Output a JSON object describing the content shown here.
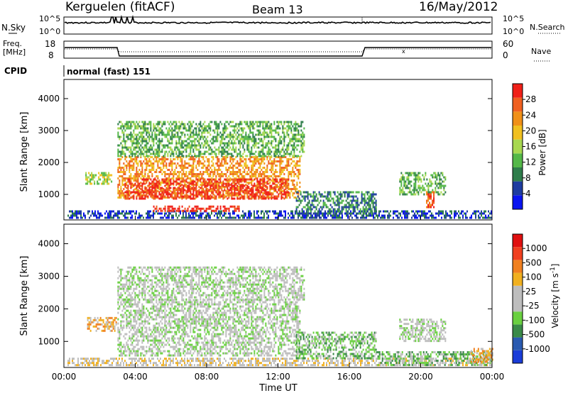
{
  "header": {
    "station": "Kerguelen (fitACF)",
    "beam": "Beam 13",
    "date": "16/May/2012"
  },
  "top_panels": {
    "nsky_label": "N.Sky",
    "nsky_ticks": [
      "10^5",
      "10^0"
    ],
    "nsearch_label": "N.Search",
    "nsearch_ticks": [
      "10^5",
      "10^0"
    ],
    "freq_label_1": "Freq.",
    "freq_label_2": "[MHz]",
    "freq_ticks": [
      "18",
      "8"
    ],
    "nave_label": "Nave",
    "nave_ticks": [
      "60",
      "0"
    ],
    "cpid_label": "CPID",
    "cpid_value": "normal (fast) 151"
  },
  "time_axis": {
    "ticks": [
      "00:00",
      "04:00",
      "08:00",
      "12:00",
      "16:00",
      "20:00",
      "00:00"
    ],
    "label": "Time UT"
  },
  "chart_data": [
    {
      "type": "heatmap",
      "quantity": "Power",
      "ylabel": "Slant Range [km]",
      "yticks": [
        1000,
        2000,
        3000,
        4000
      ],
      "ylim": [
        200,
        4600
      ],
      "xlim_hours": [
        0,
        24
      ],
      "colorbar_label": "Power [dB]",
      "colorbar_ticks": [
        "4",
        "8",
        "12",
        "16",
        "20",
        "24",
        "28"
      ],
      "colorbar_colors": [
        "#0a14f0",
        "#1e3ca0",
        "#2e7d4a",
        "#54b848",
        "#a8d850",
        "#f0c020",
        "#f09018",
        "#f06020",
        "#f02018"
      ],
      "regions": [
        {
          "t": [
            1.2,
            2.7
          ],
          "r": [
            1350,
            1700
          ],
          "level": 4
        },
        {
          "t": [
            0.2,
            24.0
          ],
          "r": [
            250,
            500
          ],
          "level": 1
        },
        {
          "t": [
            3.0,
            13.2
          ],
          "r": [
            900,
            2200
          ],
          "level": 6
        },
        {
          "t": [
            3.4,
            12.6
          ],
          "r": [
            850,
            1500
          ],
          "level": 8
        },
        {
          "t": [
            5.0,
            9.8
          ],
          "r": [
            450,
            650
          ],
          "level": 8
        },
        {
          "t": [
            3.0,
            13.5
          ],
          "r": [
            2200,
            3300
          ],
          "level": 3
        },
        {
          "t": [
            13.0,
            17.5
          ],
          "r": [
            400,
            1100
          ],
          "level": 2
        },
        {
          "t": [
            18.8,
            21.4
          ],
          "r": [
            1000,
            1700
          ],
          "level": 3
        },
        {
          "t": [
            20.3,
            20.7
          ],
          "r": [
            600,
            1100
          ],
          "level": 7
        }
      ]
    },
    {
      "type": "heatmap",
      "quantity": "Velocity",
      "ylabel": "Slant Range [km]",
      "yticks": [
        1000,
        2000,
        3000,
        4000
      ],
      "ylim": [
        200,
        4600
      ],
      "xlim_hours": [
        0,
        24
      ],
      "colorbar_label": "Velocity [m s^-1]",
      "colorbar_ticks": [
        "1000",
        "500",
        "100",
        "25",
        "-25",
        "-100",
        "-500",
        "-1000"
      ],
      "colorbar_colors": [
        "#1a3cd8",
        "#2a5ab0",
        "#3a8a48",
        "#6ad040",
        "#bdbdbd",
        "#bdbdbd",
        "#f0b020",
        "#f08020",
        "#f04020",
        "#e01010"
      ],
      "regions": [
        {
          "t": [
            1.3,
            2.9
          ],
          "r": [
            1350,
            1750
          ],
          "level": 6
        },
        {
          "t": [
            0.2,
            24.0
          ],
          "r": [
            250,
            500
          ],
          "level": 5
        },
        {
          "t": [
            3.0,
            13.2
          ],
          "r": [
            600,
            2300
          ],
          "level": 4
        },
        {
          "t": [
            3.0,
            13.5
          ],
          "r": [
            2300,
            3300
          ],
          "level": 4
        },
        {
          "t": [
            13.0,
            17.5
          ],
          "r": [
            500,
            1300
          ],
          "level": 3
        },
        {
          "t": [
            18.8,
            21.4
          ],
          "r": [
            1000,
            1700
          ],
          "level": 4
        },
        {
          "t": [
            17.5,
            24.0
          ],
          "r": [
            300,
            700
          ],
          "level": 3
        },
        {
          "t": [
            22.8,
            24.0
          ],
          "r": [
            350,
            800
          ],
          "level": 6
        }
      ]
    }
  ]
}
